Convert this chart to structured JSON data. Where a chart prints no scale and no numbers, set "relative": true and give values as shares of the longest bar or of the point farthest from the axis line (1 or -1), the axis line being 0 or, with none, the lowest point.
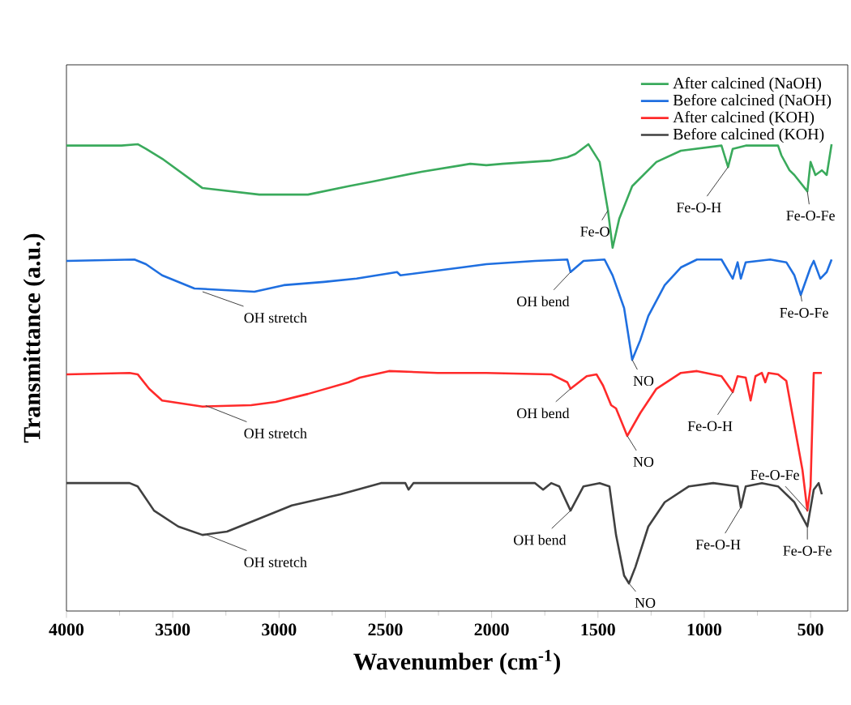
{
  "chart_data": {
    "type": "line",
    "relative": true,
    "xlabel": "Wavenumber (cm$^{-1}$)",
    "ylabel": "Transmittance (a.u.)",
    "xlim": [
      4000,
      325
    ],
    "xticks": [
      4000,
      3500,
      3000,
      2500,
      2000,
      1500,
      1000,
      500
    ],
    "legend": "top right",
    "series": [
      {
        "name": "After calcined (NaOH)",
        "color": "#3aaa5c",
        "x": [
          4000,
          3741,
          3665,
          3626,
          3550,
          3360,
          3093,
          2864,
          2673,
          2559,
          2330,
          2140,
          2101,
          2025,
          1949,
          1720,
          1644,
          1606,
          1545,
          1492,
          1453,
          1431,
          1400,
          1339,
          1225,
          1110,
          919,
          888,
          866,
          805,
          653,
          637,
          599,
          576,
          515,
          500,
          477,
          447,
          424,
          401
        ],
        "values": [
          0.997,
          0.997,
          1.0,
          0.99,
          0.969,
          0.906,
          0.892,
          0.892,
          0.91,
          0.92,
          0.941,
          0.955,
          0.958,
          0.955,
          0.958,
          0.965,
          0.972,
          0.979,
          1.0,
          0.962,
          0.858,
          0.778,
          0.84,
          0.91,
          0.962,
          0.986,
          0.997,
          0.951,
          0.99,
          0.997,
          0.997,
          0.976,
          0.944,
          0.934,
          0.899,
          0.962,
          0.934,
          0.944,
          0.934,
          1.0
        ]
      },
      {
        "name": "Before calcined (NaOH)",
        "color": "#1f6fe0",
        "x": [
          4000,
          3680,
          3626,
          3550,
          3398,
          3116,
          2978,
          2788,
          2635,
          2445,
          2429,
          2140,
          2025,
          1796,
          1644,
          1629,
          1568,
          1469,
          1431,
          1377,
          1339,
          1301,
          1263,
          1186,
          1110,
          1034,
          919,
          866,
          843,
          828,
          805,
          690,
          614,
          576,
          546,
          500,
          485,
          454,
          424,
          401
        ],
        "values": [
          0.75,
          0.753,
          0.743,
          0.719,
          0.691,
          0.684,
          0.698,
          0.705,
          0.712,
          0.726,
          0.719,
          0.736,
          0.743,
          0.75,
          0.753,
          0.726,
          0.75,
          0.753,
          0.719,
          0.649,
          0.538,
          0.58,
          0.632,
          0.698,
          0.736,
          0.753,
          0.753,
          0.712,
          0.747,
          0.712,
          0.747,
          0.753,
          0.747,
          0.719,
          0.677,
          0.736,
          0.75,
          0.712,
          0.726,
          0.753
        ]
      },
      {
        "name": "After calcined (KOH)",
        "color": "#ff2a2a",
        "x": [
          4000,
          3703,
          3665,
          3611,
          3550,
          3360,
          3131,
          3016,
          2864,
          2673,
          2620,
          2483,
          2254,
          2025,
          1720,
          1644,
          1629,
          1553,
          1507,
          1476,
          1438,
          1415,
          1362,
          1301,
          1225,
          1110,
          1034,
          919,
          866,
          843,
          805,
          782,
          759,
          729,
          713,
          698,
          653,
          614,
          538,
          515,
          500,
          485,
          447
        ],
        "values": [
          0.507,
          0.51,
          0.507,
          0.476,
          0.451,
          0.438,
          0.441,
          0.448,
          0.465,
          0.49,
          0.5,
          0.514,
          0.51,
          0.51,
          0.507,
          0.49,
          0.476,
          0.503,
          0.507,
          0.483,
          0.441,
          0.434,
          0.375,
          0.424,
          0.476,
          0.51,
          0.514,
          0.503,
          0.469,
          0.503,
          0.5,
          0.451,
          0.503,
          0.51,
          0.49,
          0.51,
          0.507,
          0.493,
          0.302,
          0.215,
          0.267,
          0.51,
          0.51
        ]
      },
      {
        "name": "Before calcined (KOH)",
        "color": "#404040",
        "x": [
          4000,
          3703,
          3665,
          3588,
          3474,
          3360,
          3245,
          3093,
          2940,
          2711,
          2521,
          2406,
          2391,
          2368,
          2101,
          1796,
          1758,
          1720,
          1682,
          1629,
          1568,
          1492,
          1446,
          1415,
          1377,
          1354,
          1324,
          1263,
          1186,
          1072,
          958,
          843,
          828,
          805,
          729,
          653,
          576,
          515,
          485,
          462,
          447
        ],
        "values": [
          0.274,
          0.274,
          0.267,
          0.215,
          0.181,
          0.163,
          0.17,
          0.198,
          0.226,
          0.25,
          0.274,
          0.274,
          0.26,
          0.274,
          0.274,
          0.274,
          0.26,
          0.274,
          0.267,
          0.215,
          0.267,
          0.274,
          0.267,
          0.163,
          0.076,
          0.059,
          0.094,
          0.181,
          0.233,
          0.267,
          0.274,
          0.267,
          0.222,
          0.267,
          0.274,
          0.267,
          0.233,
          0.181,
          0.26,
          0.274,
          0.25
        ]
      }
    ],
    "annotations": [
      {
        "text": "OH stretch",
        "x": 3360,
        "y": 0.684
      },
      {
        "text": "OH stretch",
        "x": 3345,
        "y": 0.44
      },
      {
        "text": "OH stretch",
        "x": 3345,
        "y": 0.164
      },
      {
        "text": "Fe-O",
        "x": 1453,
        "y": 0.858
      },
      {
        "text": "Fe-O-H",
        "x": 888,
        "y": 0.951
      },
      {
        "text": "Fe-O-Fe",
        "x": 515,
        "y": 0.899
      },
      {
        "text": "OH bend",
        "x": 1629,
        "y": 0.726
      },
      {
        "text": "Fe-O-Fe",
        "x": 546,
        "y": 0.677
      },
      {
        "text": "NO",
        "x": 1339,
        "y": 0.538
      },
      {
        "text": "OH bend",
        "x": 1629,
        "y": 0.476
      },
      {
        "text": "NO",
        "x": 1362,
        "y": 0.375
      },
      {
        "text": "Fe-O-H",
        "x": 866,
        "y": 0.469
      },
      {
        "text": "Fe-O-Fe",
        "x": 515,
        "y": 0.215
      },
      {
        "text": "OH bend",
        "x": 1629,
        "y": 0.215
      },
      {
        "text": "NO",
        "x": 1354,
        "y": 0.059
      },
      {
        "text": "Fe-O-H",
        "x": 828,
        "y": 0.222
      },
      {
        "text": "Fe-O-Fe",
        "x": 515,
        "y": 0.181
      }
    ]
  }
}
